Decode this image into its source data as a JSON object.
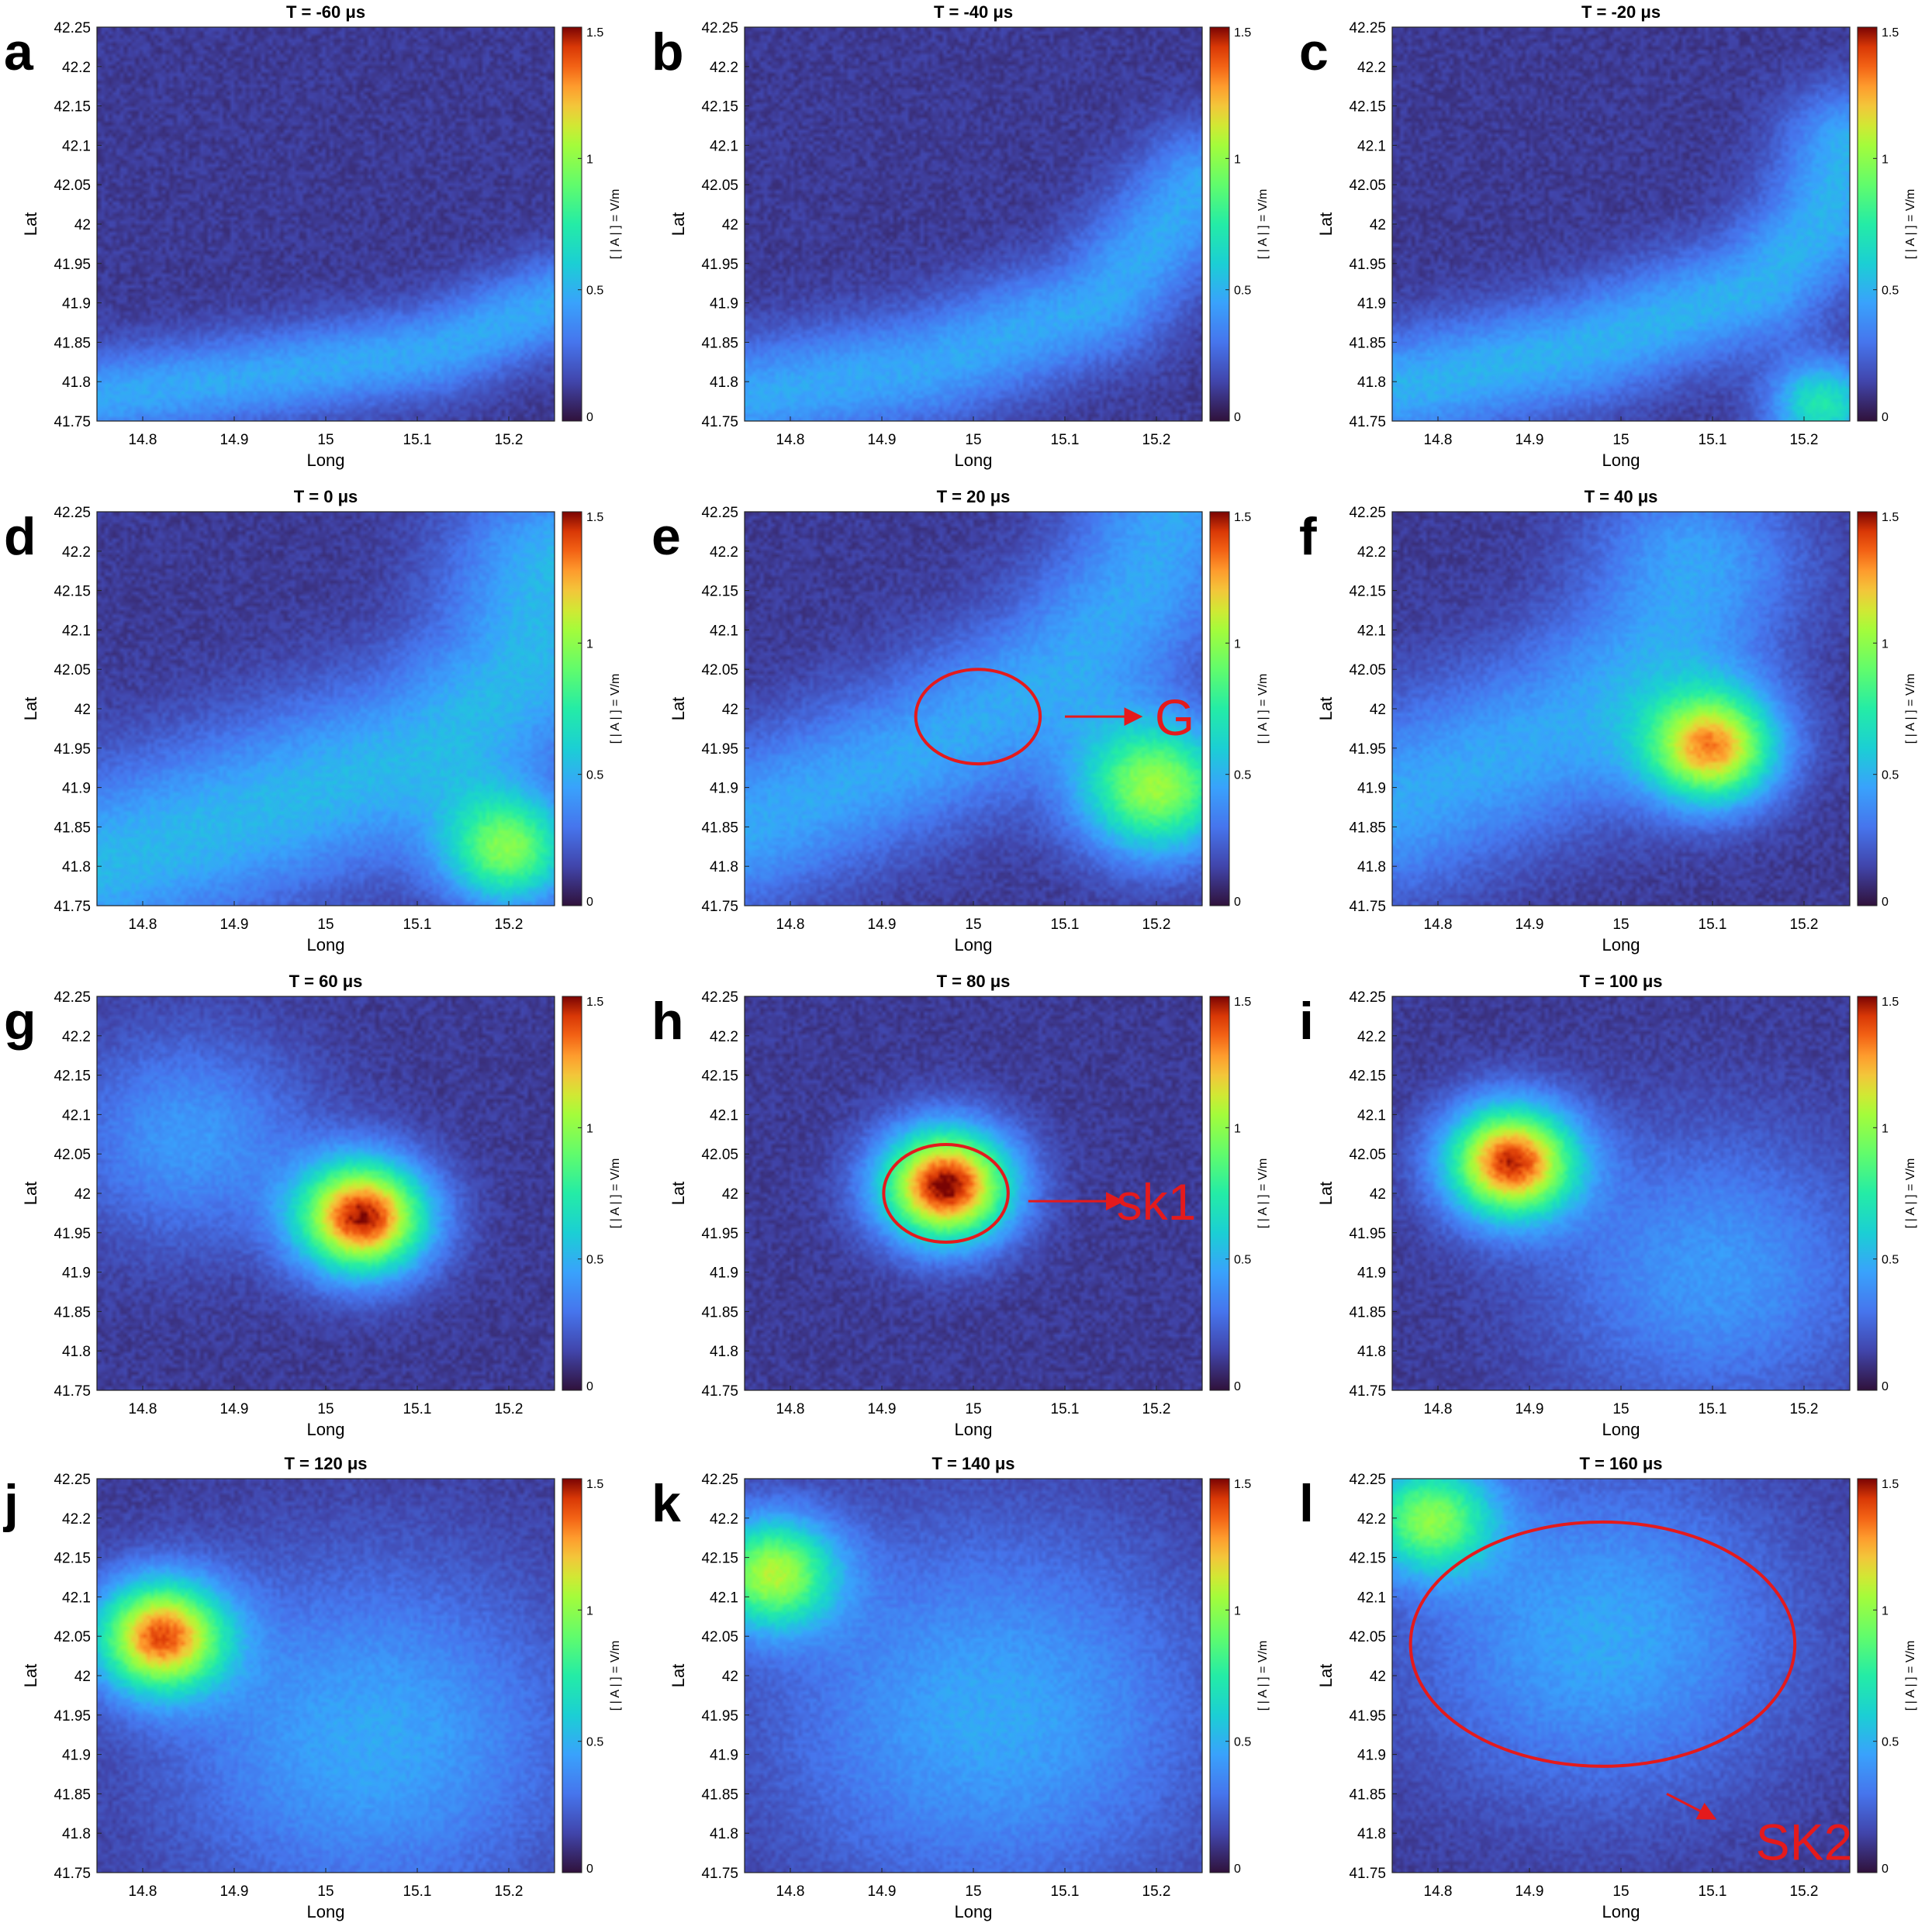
{
  "figure": {
    "colorbar": {
      "label": "[ | A | ] = V/m",
      "ticks": [
        "0",
        "0.5",
        "1",
        "1.5"
      ],
      "range": [
        0,
        1.5
      ],
      "colormap": "turbo"
    },
    "x_axis": {
      "label": "Long",
      "ticks": [
        "14.8",
        "14.9",
        "15",
        "15.1",
        "15.2"
      ],
      "range": [
        14.75,
        15.25
      ]
    },
    "y_axis": {
      "label": "Lat",
      "ticks": [
        "41.75",
        "41.8",
        "41.85",
        "41.9",
        "41.95",
        "42",
        "42.05",
        "42.1",
        "42.15",
        "42.2",
        "42.25"
      ],
      "range": [
        41.75,
        42.25
      ]
    },
    "annotation_color": "#e41a1c"
  },
  "chart_data": [
    {
      "type": "heatmap",
      "panel": "a",
      "title": "T = -60 μs",
      "xlabel": "Long",
      "ylabel": "Lat",
      "xlim": [
        14.75,
        15.25
      ],
      "ylim": [
        41.75,
        42.25
      ],
      "clim": [
        0,
        1.5
      ],
      "features": [
        {
          "kind": "arc",
          "points": [
            [
              14.75,
              41.78
            ],
            [
              14.95,
              41.81
            ],
            [
              15.12,
              41.84
            ],
            [
              15.25,
              41.9
            ]
          ],
          "amplitude": 0.35,
          "width": 0.04
        }
      ],
      "annotations": []
    },
    {
      "type": "heatmap",
      "panel": "b",
      "title": "T = -40 μs",
      "xlabel": "Long",
      "ylabel": "Lat",
      "xlim": [
        14.75,
        15.25
      ],
      "ylim": [
        41.75,
        42.25
      ],
      "clim": [
        0,
        1.5
      ],
      "features": [
        {
          "kind": "arc",
          "points": [
            [
              14.75,
              41.78
            ],
            [
              14.95,
              41.82
            ],
            [
              15.14,
              41.9
            ],
            [
              15.2,
              41.98
            ],
            [
              15.25,
              42.05
            ]
          ],
          "amplitude": 0.35,
          "width": 0.05
        }
      ],
      "annotations": []
    },
    {
      "type": "heatmap",
      "panel": "c",
      "title": "T = -20 μs",
      "xlabel": "Long",
      "ylabel": "Lat",
      "xlim": [
        14.75,
        15.25
      ],
      "ylim": [
        41.75,
        42.25
      ],
      "clim": [
        0,
        1.5
      ],
      "features": [
        {
          "kind": "arc",
          "points": [
            [
              14.75,
              41.79
            ],
            [
              14.95,
              41.84
            ],
            [
              15.15,
              41.92
            ],
            [
              15.22,
              42.0
            ],
            [
              15.25,
              42.1
            ]
          ],
          "amplitude": 0.38,
          "width": 0.05
        },
        {
          "kind": "blob",
          "x": 15.22,
          "y": 41.77,
          "amplitude": 0.6,
          "radius": 0.04
        }
      ],
      "annotations": []
    },
    {
      "type": "heatmap",
      "panel": "d",
      "title": "T = 0 μs",
      "xlabel": "Long",
      "ylabel": "Lat",
      "xlim": [
        14.75,
        15.25
      ],
      "ylim": [
        41.75,
        42.25
      ],
      "clim": [
        0,
        1.5
      ],
      "features": [
        {
          "kind": "arc",
          "points": [
            [
              14.75,
              41.8
            ],
            [
              14.95,
              41.88
            ],
            [
              15.12,
              41.95
            ],
            [
              15.22,
              42.05
            ],
            [
              15.25,
              42.18
            ]
          ],
          "amplitude": 0.4,
          "width": 0.08
        },
        {
          "kind": "blob",
          "x": 15.2,
          "y": 41.82,
          "amplitude": 0.8,
          "radius": 0.05
        }
      ],
      "annotations": []
    },
    {
      "type": "heatmap",
      "panel": "e",
      "title": "T = 20 μs",
      "xlabel": "Long",
      "ylabel": "Lat",
      "xlim": [
        14.75,
        15.25
      ],
      "ylim": [
        41.75,
        42.25
      ],
      "clim": [
        0,
        1.5
      ],
      "features": [
        {
          "kind": "arc",
          "points": [
            [
              14.75,
              41.85
            ],
            [
              14.95,
              41.95
            ],
            [
              15.1,
              42.05
            ],
            [
              15.18,
              42.15
            ],
            [
              15.22,
              42.25
            ]
          ],
          "amplitude": 0.35,
          "width": 0.07
        },
        {
          "kind": "blob",
          "x": 15.2,
          "y": 41.9,
          "amplitude": 0.9,
          "radius": 0.06
        }
      ],
      "annotations": [
        {
          "kind": "ellipse",
          "cx": 15.005,
          "cy": 41.99,
          "rx": 0.068,
          "ry": 0.06
        },
        {
          "kind": "arrow",
          "from": [
            15.1,
            41.99
          ],
          "to": [
            15.18,
            41.99
          ]
        },
        {
          "kind": "label",
          "text": "G",
          "x": 15.22,
          "y": 41.99
        }
      ]
    },
    {
      "type": "heatmap",
      "panel": "f",
      "title": "T = 40 μs",
      "xlabel": "Long",
      "ylabel": "Lat",
      "xlim": [
        14.75,
        15.25
      ],
      "ylim": [
        41.75,
        42.25
      ],
      "clim": [
        0,
        1.5
      ],
      "features": [
        {
          "kind": "arc",
          "points": [
            [
              14.75,
              41.88
            ],
            [
              14.95,
              41.98
            ],
            [
              15.05,
              42.08
            ],
            [
              15.08,
              42.18
            ]
          ],
          "amplitude": 0.35,
          "width": 0.08
        },
        {
          "kind": "blob",
          "x": 15.1,
          "y": 41.95,
          "amplitude": 1.1,
          "radius": 0.05
        }
      ],
      "annotations": []
    },
    {
      "type": "heatmap",
      "panel": "g",
      "title": "T = 60 μs",
      "xlabel": "Long",
      "ylabel": "Lat",
      "xlim": [
        14.75,
        15.25
      ],
      "ylim": [
        41.75,
        42.25
      ],
      "clim": [
        0,
        1.5
      ],
      "features": [
        {
          "kind": "blob",
          "x": 14.85,
          "y": 42.07,
          "amplitude": 0.3,
          "radius": 0.09
        },
        {
          "kind": "blob",
          "x": 15.04,
          "y": 41.97,
          "amplitude": 1.35,
          "radius": 0.05
        }
      ],
      "annotations": []
    },
    {
      "type": "heatmap",
      "panel": "h",
      "title": "T = 80 μs",
      "xlabel": "Long",
      "ylabel": "Lat",
      "xlim": [
        14.75,
        15.25
      ],
      "ylim": [
        41.75,
        42.25
      ],
      "clim": [
        0,
        1.5
      ],
      "features": [
        {
          "kind": "blob",
          "x": 14.97,
          "y": 42.01,
          "amplitude": 1.4,
          "radius": 0.05
        }
      ],
      "annotations": [
        {
          "kind": "ellipse",
          "cx": 14.97,
          "cy": 42.0,
          "rx": 0.068,
          "ry": 0.062
        },
        {
          "kind": "arrow",
          "from": [
            15.06,
            41.99
          ],
          "to": [
            15.16,
            41.99
          ]
        },
        {
          "kind": "label",
          "text": "sk1",
          "x": 15.2,
          "y": 41.99
        }
      ]
    },
    {
      "type": "heatmap",
      "panel": "i",
      "title": "T = 100 μs",
      "xlabel": "Long",
      "ylabel": "Lat",
      "xlim": [
        14.75,
        15.25
      ],
      "ylim": [
        41.75,
        42.25
      ],
      "clim": [
        0,
        1.5
      ],
      "features": [
        {
          "kind": "blob",
          "x": 14.88,
          "y": 42.04,
          "amplitude": 1.3,
          "radius": 0.05
        },
        {
          "kind": "blob",
          "x": 15.1,
          "y": 41.9,
          "amplitude": 0.3,
          "radius": 0.12
        }
      ],
      "annotations": []
    },
    {
      "type": "heatmap",
      "panel": "j",
      "title": "T = 120 μs",
      "xlabel": "Long",
      "ylabel": "Lat",
      "xlim": [
        14.75,
        15.25
      ],
      "ylim": [
        41.75,
        42.25
      ],
      "clim": [
        0,
        1.5
      ],
      "features": [
        {
          "kind": "blob",
          "x": 14.82,
          "y": 42.05,
          "amplitude": 1.2,
          "radius": 0.05
        },
        {
          "kind": "blob",
          "x": 15.05,
          "y": 41.92,
          "amplitude": 0.35,
          "radius": 0.15
        }
      ],
      "annotations": []
    },
    {
      "type": "heatmap",
      "panel": "k",
      "title": "T = 140 μs",
      "xlabel": "Long",
      "ylabel": "Lat",
      "xlim": [
        14.75,
        15.25
      ],
      "ylim": [
        41.75,
        42.25
      ],
      "clim": [
        0,
        1.5
      ],
      "features": [
        {
          "kind": "blob",
          "x": 14.78,
          "y": 42.13,
          "amplitude": 0.9,
          "radius": 0.05
        },
        {
          "kind": "blob",
          "x": 15.02,
          "y": 41.95,
          "amplitude": 0.35,
          "radius": 0.16
        }
      ],
      "annotations": []
    },
    {
      "type": "heatmap",
      "panel": "l",
      "title": "T = 160 μs",
      "xlabel": "Long",
      "ylabel": "Lat",
      "xlim": [
        14.75,
        15.25
      ],
      "ylim": [
        41.75,
        42.25
      ],
      "clim": [
        0,
        1.5
      ],
      "features": [
        {
          "kind": "blob",
          "x": 14.79,
          "y": 42.2,
          "amplitude": 0.8,
          "radius": 0.05
        },
        {
          "kind": "blob",
          "x": 14.98,
          "y": 42.05,
          "amplitude": 0.35,
          "radius": 0.14
        }
      ],
      "annotations": [
        {
          "kind": "ellipse",
          "cx": 14.98,
          "cy": 42.04,
          "rx": 0.21,
          "ry": 0.155
        },
        {
          "kind": "arrow",
          "from": [
            15.05,
            41.85
          ],
          "to": [
            15.1,
            41.82
          ]
        },
        {
          "kind": "label",
          "text": "SK2",
          "x": 15.2,
          "y": 41.79
        }
      ]
    }
  ]
}
